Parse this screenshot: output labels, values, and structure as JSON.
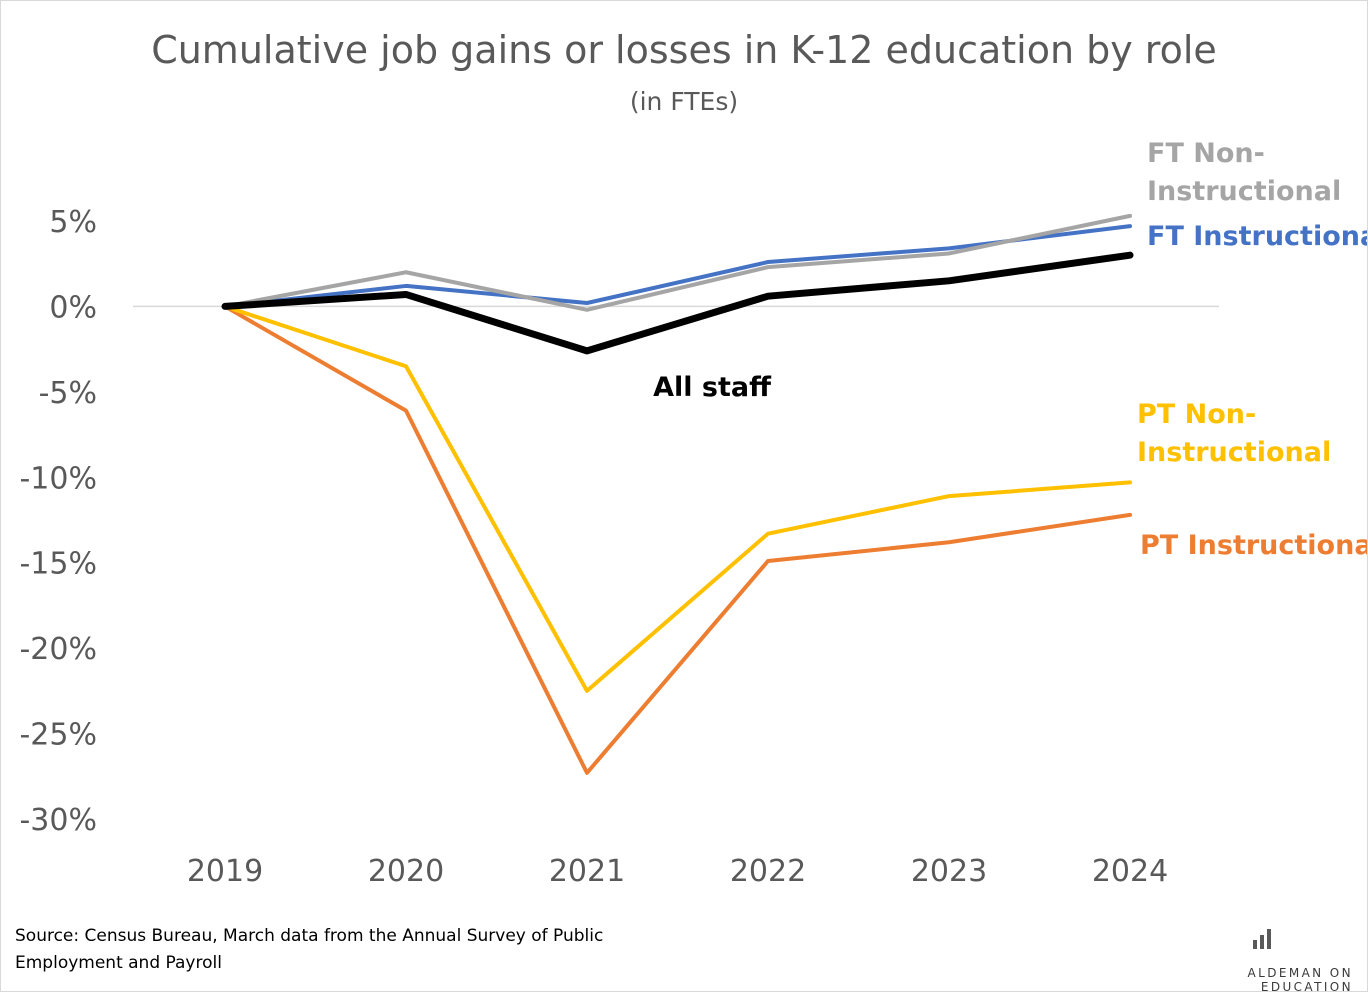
{
  "chart_data": {
    "type": "line",
    "title": "Cumulative job gains or losses in K-12 education by role",
    "subtitle": "(in FTEs)",
    "x": [
      "2019",
      "2020",
      "2021",
      "2022",
      "2023",
      "2024"
    ],
    "y_ticks": [
      "5%",
      "0%",
      "-5%",
      "-10%",
      "-15%",
      "-20%",
      "-25%",
      "-30%"
    ],
    "ylim": [
      -30,
      5
    ],
    "y_unit": "%",
    "grid": false,
    "zero_line": true,
    "legend": "direct labels at line ends",
    "series": [
      {
        "name": "PT Instructional",
        "label_lines": [
          "PT Instructional"
        ],
        "color": "#ED7D31",
        "values": [
          0,
          -6.1,
          -27.3,
          -14.9,
          -13.8,
          -12.2
        ]
      },
      {
        "name": "PT Non-Instructional",
        "label_lines": [
          "PT Non-",
          "Instructional"
        ],
        "color": "#FFC000",
        "values": [
          0,
          -3.5,
          -22.5,
          -13.3,
          -11.1,
          -10.3
        ]
      },
      {
        "name": "FT Instructional",
        "label_lines": [
          "FT Instructional"
        ],
        "color": "#4472C4",
        "values": [
          0,
          1.2,
          0.2,
          2.6,
          3.4,
          4.7
        ]
      },
      {
        "name": "FT Non-Instructional",
        "label_lines": [
          "FT Non-",
          "Instructional"
        ],
        "color": "#A5A5A5",
        "values": [
          0,
          2.0,
          -0.2,
          2.3,
          3.1,
          5.3
        ]
      },
      {
        "name": "All staff",
        "label_lines": [
          "All staff"
        ],
        "color": "#000000",
        "values": [
          0,
          0.7,
          -2.6,
          0.6,
          1.5,
          3.0
        ]
      }
    ]
  },
  "source": "Source: Census Bureau, March data from the Annual Survey of Public Employment and Payroll",
  "brand": {
    "name": "ALDEMAN ON EDUCATION",
    "icon": "bar-chart-icon"
  }
}
